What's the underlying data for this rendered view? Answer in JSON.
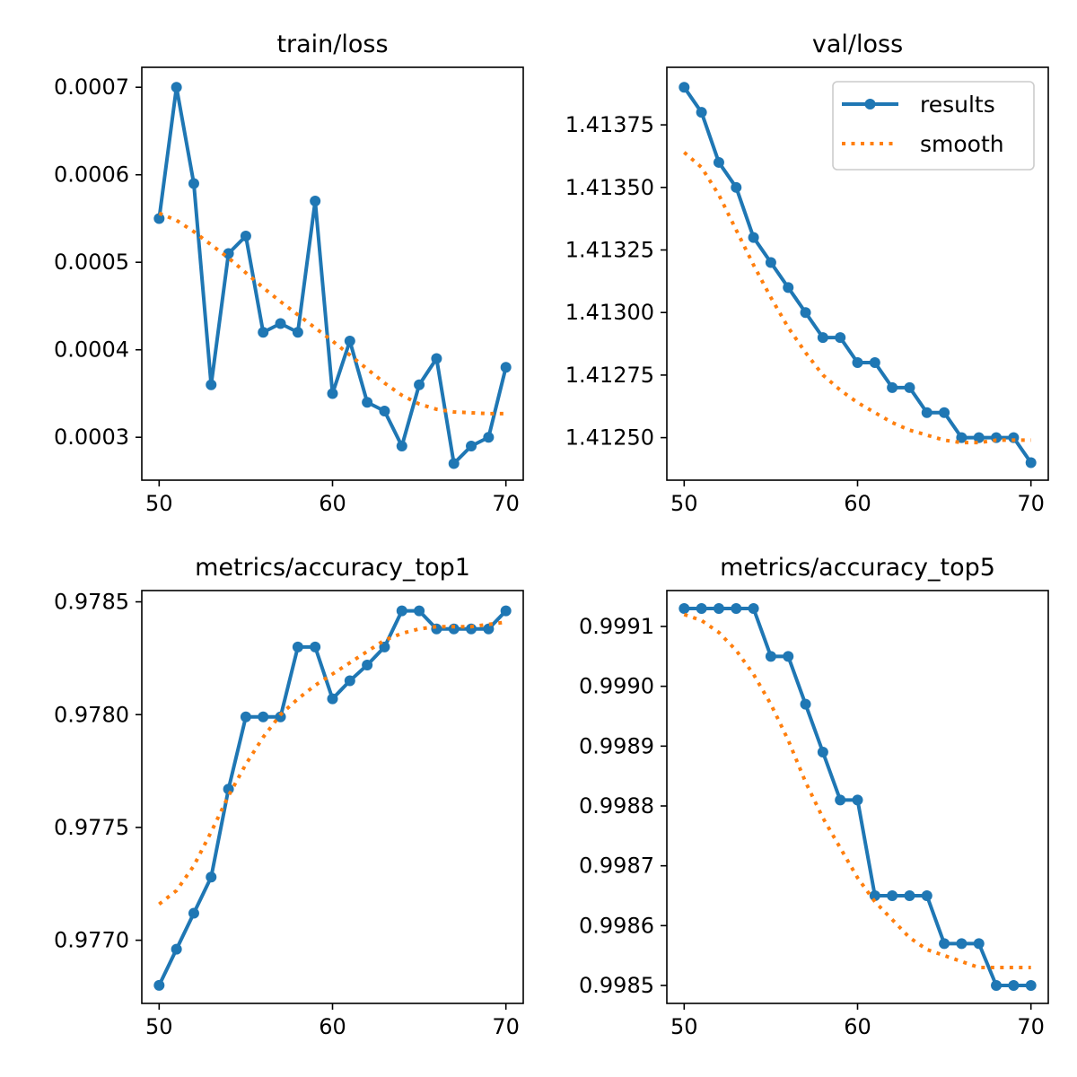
{
  "colors": {
    "results": "#1f77b4",
    "smooth": "#ff7f0e",
    "axes": "#000000",
    "background": "#ffffff"
  },
  "legend": {
    "placement": "upper-right of val/loss panel",
    "entries": [
      "results",
      "smooth"
    ]
  },
  "chart_data": [
    {
      "type": "line",
      "title": "train/loss",
      "x": [
        50,
        51,
        52,
        53,
        54,
        55,
        56,
        57,
        58,
        59,
        60,
        61,
        62,
        63,
        64,
        65,
        66,
        67,
        68,
        69,
        70
      ],
      "xlim": [
        49,
        71
      ],
      "xticks": [
        50,
        60,
        70
      ],
      "ylim": [
        0.000251,
        0.0007228
      ],
      "yticks": [
        0.0003,
        0.0004,
        0.0005,
        0.0006,
        0.0007
      ],
      "ytick_labels": [
        "0.0003",
        "0.0004",
        "0.0005",
        "0.0006",
        "0.0007"
      ],
      "series": [
        {
          "name": "results",
          "style": "solid-with-markers",
          "values": [
            0.00055,
            0.0007,
            0.00059,
            0.00036,
            0.00051,
            0.00053,
            0.00042,
            0.00043,
            0.00042,
            0.00057,
            0.00035,
            0.00041,
            0.00034,
            0.00033,
            0.00029,
            0.00036,
            0.00039,
            0.00027,
            0.00029,
            0.0003,
            0.00038
          ]
        },
        {
          "name": "smooth",
          "style": "dotted",
          "values": [
            0.000556,
            0.000548,
            0.000535,
            0.00052,
            0.000505,
            0.000488,
            0.000471,
            0.000455,
            0.00044,
            0.000425,
            0.00041,
            0.000394,
            0.000378,
            0.000362,
            0.000348,
            0.000338,
            0.000332,
            0.000329,
            0.000328,
            0.000327,
            0.000327
          ]
        }
      ]
    },
    {
      "type": "line",
      "title": "val/loss",
      "x": [
        50,
        51,
        52,
        53,
        54,
        55,
        56,
        57,
        58,
        59,
        60,
        61,
        62,
        63,
        64,
        65,
        66,
        67,
        68,
        69,
        70
      ],
      "xlim": [
        49,
        71
      ],
      "xticks": [
        50,
        60,
        70
      ],
      "ylim": [
        1.41233,
        1.41398
      ],
      "yticks": [
        1.4125,
        1.41275,
        1.413,
        1.41325,
        1.4135,
        1.41375
      ],
      "ytick_labels": [
        "1.41250",
        "1.41275",
        "1.41300",
        "1.41325",
        "1.41350",
        "1.41375"
      ],
      "series": [
        {
          "name": "results",
          "style": "solid-with-markers",
          "values": [
            1.4139,
            1.4138,
            1.4136,
            1.4135,
            1.4133,
            1.4132,
            1.4131,
            1.413,
            1.4129,
            1.4129,
            1.4128,
            1.4128,
            1.4127,
            1.4127,
            1.4126,
            1.4126,
            1.4125,
            1.4125,
            1.4125,
            1.4125,
            1.4124
          ]
        },
        {
          "name": "smooth",
          "style": "dotted",
          "values": [
            1.41364,
            1.41358,
            1.41347,
            1.41333,
            1.41319,
            1.41306,
            1.41294,
            1.41284,
            1.41275,
            1.41269,
            1.41264,
            1.4126,
            1.41256,
            1.41253,
            1.41251,
            1.41249,
            1.41248,
            1.41248,
            1.41249,
            1.41249,
            1.41249
          ]
        }
      ]
    },
    {
      "type": "line",
      "title": "metrics/accuracy_top1",
      "x": [
        50,
        51,
        52,
        53,
        54,
        55,
        56,
        57,
        58,
        59,
        60,
        61,
        62,
        63,
        64,
        65,
        66,
        67,
        68,
        69,
        70
      ],
      "xlim": [
        49,
        71
      ],
      "xticks": [
        50,
        60,
        70
      ],
      "ylim": [
        0.97672,
        0.97855
      ],
      "yticks": [
        0.977,
        0.9775,
        0.978,
        0.9785
      ],
      "ytick_labels": [
        "0.9770",
        "0.9775",
        "0.9780",
        "0.9785"
      ],
      "series": [
        {
          "name": "results",
          "style": "solid-with-markers",
          "values": [
            0.9768,
            0.97696,
            0.97712,
            0.97728,
            0.97767,
            0.97799,
            0.97799,
            0.97799,
            0.9783,
            0.9783,
            0.97807,
            0.97815,
            0.97822,
            0.9783,
            0.97846,
            0.97846,
            0.97838,
            0.97838,
            0.97838,
            0.97838,
            0.97846
          ]
        },
        {
          "name": "smooth",
          "style": "dotted",
          "values": [
            0.97716,
            0.97722,
            0.97733,
            0.97748,
            0.97764,
            0.97778,
            0.9779,
            0.978,
            0.97807,
            0.97813,
            0.97818,
            0.97823,
            0.97828,
            0.97833,
            0.97836,
            0.97838,
            0.97839,
            0.97839,
            0.97839,
            0.9784,
            0.97841
          ]
        }
      ]
    },
    {
      "type": "line",
      "title": "metrics/accuracy_top5",
      "x": [
        50,
        51,
        52,
        53,
        54,
        55,
        56,
        57,
        58,
        59,
        60,
        61,
        62,
        63,
        64,
        65,
        66,
        67,
        68,
        69,
        70
      ],
      "xlim": [
        49,
        71
      ],
      "xticks": [
        50,
        60,
        70
      ],
      "ylim": [
        0.99847,
        0.99916
      ],
      "yticks": [
        0.9985,
        0.9986,
        0.9987,
        0.9988,
        0.9989,
        0.999,
        0.9991
      ],
      "ytick_labels": [
        "0.9985",
        "0.9986",
        "0.9987",
        "0.9988",
        "0.9989",
        "0.9990",
        "0.9991"
      ],
      "series": [
        {
          "name": "results",
          "style": "solid-with-markers",
          "values": [
            0.99913,
            0.99913,
            0.99913,
            0.99913,
            0.99913,
            0.99905,
            0.99905,
            0.99897,
            0.99889,
            0.99881,
            0.99881,
            0.99865,
            0.99865,
            0.99865,
            0.99865,
            0.99857,
            0.99857,
            0.99857,
            0.9985,
            0.9985,
            0.9985
          ]
        },
        {
          "name": "smooth",
          "style": "dotted",
          "values": [
            0.99912,
            0.99911,
            0.99909,
            0.99906,
            0.99902,
            0.99897,
            0.99891,
            0.99884,
            0.99878,
            0.99873,
            0.99868,
            0.99864,
            0.99861,
            0.99858,
            0.99856,
            0.99855,
            0.99854,
            0.99853,
            0.99853,
            0.99853,
            0.99853
          ]
        }
      ]
    }
  ]
}
